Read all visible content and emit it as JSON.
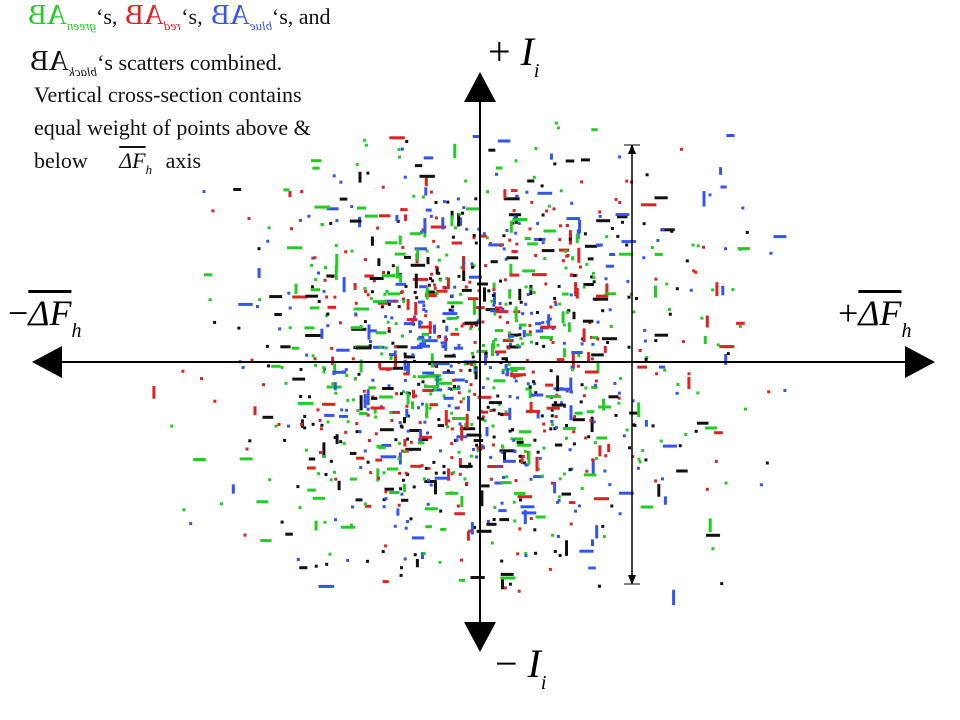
{
  "caption": {
    "line1": [
      {
        "symbol": "AB",
        "sub": "green",
        "color": "#22cc22",
        "suffix": "‘s,"
      },
      {
        "symbol": "AB",
        "sub": "red",
        "color": "#dd2222",
        "suffix": "‘s,"
      },
      {
        "symbol": "AB",
        "sub": "blue",
        "color": "#3355ee",
        "suffix": "‘s, and"
      }
    ],
    "line2": {
      "symbol": "AB",
      "sub": "black",
      "color": "#111111",
      "suffix": "‘s scatters combined."
    },
    "note": [
      "Vertical cross-section contains",
      "equal weight of points above &",
      "below"
    ],
    "note_symbol": {
      "main": "ΔF",
      "sub": "h"
    },
    "note_tail": "axis"
  },
  "axes": {
    "top": {
      "sign": "+",
      "main": "I",
      "sub": "i"
    },
    "bottom": {
      "sign": "−",
      "main": "I",
      "sub": "i"
    },
    "left": {
      "sign": "−",
      "main": "ΔF",
      "sub": "h"
    },
    "right": {
      "sign": "+",
      "main": "ΔF",
      "sub": "h"
    }
  }
}
